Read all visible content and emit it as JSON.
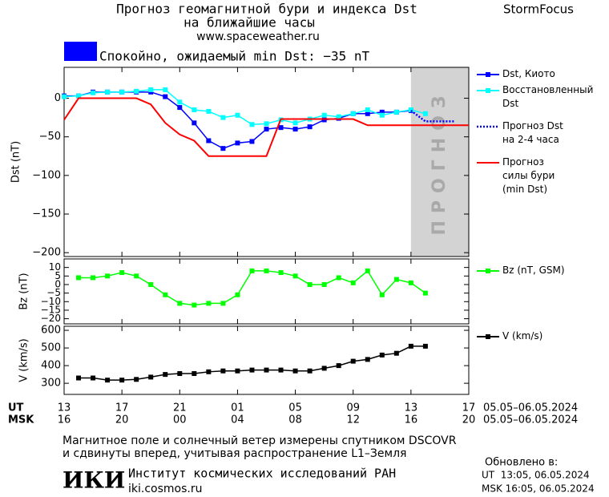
{
  "header": {
    "title": "Прогноз геомагнитной бури и индекса Dst",
    "subtitle": "на ближайшие часы",
    "url": "www.spaceweather.ru",
    "brand": "StormFocus",
    "status": "Спокойно, ожидаемый min Dst: −35 nT",
    "status_color": "#0000ff"
  },
  "x_axis": {
    "xlim": [
      0,
      28
    ],
    "xticks": [
      {
        "value": 0,
        "label": "13"
      },
      {
        "value": 4,
        "label": "17"
      },
      {
        "value": 8,
        "label": "21"
      },
      {
        "value": 12,
        "label": "01"
      },
      {
        "value": 16,
        "label": "05"
      },
      {
        "value": 20,
        "label": "09"
      },
      {
        "value": 24,
        "label": "13"
      },
      {
        "value": 28,
        "label": "17"
      }
    ],
    "label": "UT",
    "range_label": "05.05–06.05.2024",
    "xticks2": [
      {
        "value": 0,
        "label": "16"
      },
      {
        "value": 4,
        "label": "20"
      },
      {
        "value": 8,
        "label": "00"
      },
      {
        "value": 12,
        "label": "04"
      },
      {
        "value": 16,
        "label": "08"
      },
      {
        "value": 20,
        "label": "12"
      },
      {
        "value": 24,
        "label": "16"
      },
      {
        "value": 28,
        "label": "20"
      }
    ],
    "label2": "MSK",
    "range_label2": "05.05–06.05.2024"
  },
  "chart_data": [
    {
      "type": "line",
      "ylabel": "Dst (nT)",
      "ylim": [
        -205,
        40
      ],
      "yticks": [
        0,
        {
          "value": -50,
          "label": "−50"
        },
        {
          "value": -100,
          "label": "−100"
        },
        {
          "value": -150,
          "label": "−150"
        },
        {
          "value": -200,
          "label": "−200"
        }
      ],
      "forecast_region": {
        "xlim": [
          24,
          28
        ],
        "label": "ПРОГНОЗ",
        "color": "#d3d3d3"
      },
      "series": [
        {
          "name": "Dst, Киото",
          "color": "#0000ff",
          "marker": true,
          "line_style": "solid",
          "x": [
            0,
            1,
            2,
            3,
            4,
            5,
            6,
            7,
            8,
            9,
            10,
            11,
            12,
            13,
            14,
            15,
            16,
            17,
            18,
            19,
            20,
            21,
            22,
            23,
            24
          ],
          "values": [
            3,
            3,
            8,
            8,
            8,
            8,
            8,
            2,
            -12,
            -32,
            -55,
            -65,
            -58,
            -56,
            -40,
            -38,
            -40,
            -37,
            -28,
            -26,
            -20,
            -20,
            -18,
            -18,
            -16
          ]
        },
        {
          "name": "Восстановленный\nDst",
          "color": "#00ffff",
          "marker": true,
          "line_style": "solid",
          "x": [
            0,
            1,
            2,
            3,
            4,
            5,
            6,
            7,
            8,
            9,
            10,
            11,
            12,
            13,
            14,
            15,
            16,
            17,
            18,
            19,
            20,
            21,
            22,
            23,
            24,
            25
          ],
          "values": [
            2,
            3,
            7,
            8,
            8,
            9,
            11,
            11,
            -5,
            -15,
            -17,
            -25,
            -22,
            -34,
            -33,
            -28,
            -32,
            -27,
            -22,
            -24,
            -20,
            -15,
            -22,
            -18,
            -15,
            -20
          ]
        },
        {
          "name": "Прогноз Dst\nна 2-4 часа",
          "color": "#0000ff",
          "marker": false,
          "line_style": "dotted",
          "x": [
            24,
            25,
            26,
            27
          ],
          "values": [
            -16,
            -30,
            -30,
            -30
          ]
        },
        {
          "name": "Прогноз\nсилы бури\n(min Dst)",
          "color": "#ff0000",
          "marker": false,
          "line_style": "solid",
          "x": [
            0,
            1,
            2,
            3,
            4,
            5,
            6,
            7,
            8,
            9,
            10,
            11,
            12,
            13,
            14,
            15,
            16,
            17,
            18,
            19,
            20,
            21,
            22,
            23,
            24,
            25,
            26,
            27,
            28
          ],
          "values": [
            -28,
            0,
            0,
            0,
            0,
            0,
            -8,
            -32,
            -47,
            -55,
            -75,
            -75,
            -75,
            -75,
            -75,
            -27,
            -27,
            -27,
            -27,
            -27,
            -27,
            -35,
            -35,
            -35,
            -35,
            -35,
            -35,
            -35,
            -35
          ]
        }
      ]
    },
    {
      "type": "line",
      "ylabel": "Bz (nT)",
      "ylim": [
        -23,
        15
      ],
      "yticks": [
        10,
        5,
        0,
        {
          "value": -5,
          "label": "−5"
        },
        {
          "value": -10,
          "label": "−10"
        },
        {
          "value": -15,
          "label": "−15"
        },
        {
          "value": -20,
          "label": "−20"
        }
      ],
      "series": [
        {
          "name": "Bz (nT, GSM)",
          "color": "#00ff00",
          "marker": true,
          "line_style": "solid",
          "x": [
            1,
            2,
            3,
            4,
            5,
            6,
            7,
            8,
            9,
            10,
            11,
            12,
            13,
            14,
            15,
            16,
            17,
            18,
            19,
            20,
            21,
            22,
            23,
            24,
            25
          ],
          "values": [
            4,
            4,
            5,
            7,
            5,
            0,
            -6,
            -11,
            -12,
            -11,
            -11,
            -6,
            8,
            8,
            7,
            5,
            0,
            0,
            4,
            1,
            8,
            -6,
            3,
            1,
            -5
          ]
        }
      ]
    },
    {
      "type": "line",
      "ylabel": "V (km/s)",
      "ylim": [
        237,
        623
      ],
      "yticks": [
        300,
        400,
        500,
        600
      ],
      "series": [
        {
          "name": "V (km/s)",
          "color": "#000000",
          "marker": true,
          "line_style": "solid",
          "x": [
            1,
            2,
            3,
            4,
            5,
            6,
            7,
            8,
            9,
            10,
            11,
            12,
            13,
            14,
            15,
            16,
            17,
            18,
            19,
            20,
            21,
            22,
            23,
            24,
            25
          ],
          "values": [
            330,
            330,
            318,
            318,
            322,
            335,
            350,
            355,
            355,
            365,
            370,
            370,
            375,
            375,
            375,
            370,
            370,
            385,
            400,
            425,
            435,
            460,
            470,
            510,
            510
          ]
        }
      ]
    }
  ],
  "footer": {
    "note_line1": "Магнитное поле и солнечный ветер измерены спутником DSCOVR",
    "note_line2": "и сдвинуты вперед, учитывая распространение L1–Земля",
    "updated_label": "Обновлено в:",
    "updated_ut": "UT  13:05, 06.05.2024",
    "updated_msk": "MSK 16:05, 06.05.2024",
    "logo": "ИКИ",
    "institute": "Институт космических исследований РАН",
    "site": "iki.cosmos.ru"
  }
}
